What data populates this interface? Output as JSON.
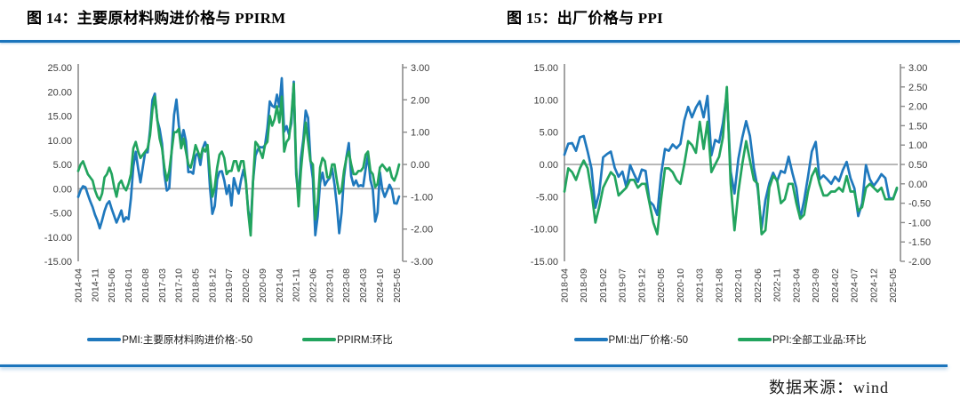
{
  "header": {
    "left_title": "图 14：主要原材料购进价格与 PPIRM",
    "right_title": "图 15：出厂价格与 PPI"
  },
  "page": {
    "source_label": "数据来源：wind"
  },
  "colors": {
    "blue": "#1F78BD",
    "green": "#22A45E",
    "rule_blue": "#1C75BC",
    "axis_gray": "#8C8C8C",
    "zero_gray": "#A0A0A0",
    "text": "#3D3D3D"
  },
  "chart_data": [
    {
      "type": "line",
      "title": "图 14：主要原材料购进价格与 PPIRM",
      "freq": "monthly",
      "start_month": "2014-04",
      "end_month": "2025-06",
      "x_tick_step_months": 7,
      "x_tick_labels": [
        "2014-04",
        "2014-11",
        "2015-06",
        "2016-01",
        "2016-08",
        "2017-03",
        "2017-10",
        "2018-05",
        "2018-12",
        "2019-07",
        "2020-02",
        "2020-09",
        "2021-04",
        "2021-11",
        "2022-06",
        "2023-01",
        "2023-08",
        "2024-03",
        "2024-10",
        "2025-05"
      ],
      "left_axis": {
        "min": -15,
        "max": 25,
        "tick_labels": [
          "25.00",
          "20.00",
          "15.00",
          "10.00",
          "5.00",
          "0.00",
          "-5.00",
          "-10.00",
          "-15.00"
        ]
      },
      "right_axis": {
        "min": -3,
        "max": 3,
        "tick_labels": [
          "3.00",
          "2.00",
          "1.00",
          "0.00",
          "-1.00",
          "-2.00",
          "-3.00"
        ]
      },
      "grid": false,
      "legend_position": "bottom",
      "series": [
        {
          "name": "PMI:主要原材料购进价格:-50",
          "axis": "left",
          "color_key": "blue",
          "values": [
            -1.7,
            -0.3,
            0.5,
            0.3,
            -1.2,
            -2.6,
            -3.8,
            -5.4,
            -6.6,
            -8.2,
            -6.5,
            -4.6,
            -3.2,
            -2.6,
            -4.2,
            -5.6,
            -7.0,
            -5.8,
            -4.5,
            -6.8,
            -5.9,
            -6.3,
            -2.0,
            4.6,
            7.6,
            4.2,
            1.3,
            4.5,
            7.6,
            7.5,
            12.1,
            18.3,
            19.6,
            14.2,
            12.3,
            9.3,
            2.9,
            -0.4,
            0.1,
            7.8,
            15.2,
            18.4,
            13.2,
            9.5,
            12.1,
            9.8,
            3.4,
            3.5,
            3.1,
            6.7,
            7.4,
            4.9,
            8.3,
            9.6,
            8.1,
            0.3,
            -5.2,
            -3.6,
            1.9,
            3.5,
            3.6,
            1.7,
            -1.1,
            0.7,
            -3.5,
            2.2,
            0.4,
            -1.0,
            1.8,
            3.9,
            1.4,
            -4.5,
            -7.5,
            1.6,
            6.8,
            8.1,
            8.6,
            8.5,
            8.9,
            12.5,
            18.0,
            17.1,
            16.8,
            19.4,
            16.9,
            22.8,
            11.8,
            12.9,
            11.2,
            13.5,
            22.1,
            2.9,
            -1.9,
            6.3,
            10.1,
            16.1,
            14.6,
            5.9,
            2.0,
            -9.6,
            -5.7,
            1.2,
            3.3,
            0.7,
            1.6,
            2.2,
            4.2,
            0.9,
            -3.5,
            -9.2,
            -4.9,
            2.4,
            6.5,
            9.4,
            2.6,
            0.7,
            1.7,
            0.5,
            0.7,
            0.5,
            4.0,
            6.9,
            1.8,
            -0.1,
            -6.8,
            -4.9,
            3.4,
            -0.2,
            -1.7,
            -0.5,
            0.8,
            -0.2,
            -3.0,
            -3.1,
            -1.6
          ]
        },
        {
          "name": "PPIRM:环比",
          "axis": "right",
          "color_key": "green",
          "values": [
            -0.2,
            0.0,
            0.1,
            -0.1,
            -0.3,
            -0.4,
            -0.5,
            -0.8,
            -1.0,
            -1.1,
            -0.9,
            -0.4,
            -0.3,
            -0.1,
            -0.3,
            -0.7,
            -1.0,
            -0.6,
            -0.5,
            -0.7,
            -0.8,
            -0.6,
            -0.3,
            0.5,
            0.7,
            0.4,
            0.2,
            0.3,
            0.4,
            0.5,
            0.9,
            1.7,
            2.1,
            1.4,
            0.8,
            0.5,
            -0.1,
            -0.5,
            -0.2,
            0.4,
            1.0,
            1.0,
            1.1,
            0.5,
            0.8,
            0.4,
            0.0,
            -0.1,
            0.2,
            0.6,
            0.4,
            0.2,
            0.5,
            0.4,
            0.6,
            -0.3,
            -1.0,
            -0.7,
            -0.1,
            0.3,
            0.4,
            0.2,
            -0.3,
            -0.2,
            -0.2,
            0.1,
            0.1,
            -0.2,
            0.1,
            0.1,
            -0.5,
            -1.5,
            -2.2,
            -0.5,
            0.7,
            0.6,
            0.4,
            0.2,
            0.6,
            0.7,
            1.5,
            1.2,
            1.4,
            1.8,
            1.3,
            2.1,
            0.4,
            0.7,
            0.8,
            1.5,
            2.5,
            -0.1,
            -1.3,
            -0.2,
            0.6,
            1.3,
            0.7,
            0.1,
            0.0,
            -1.7,
            -1.2,
            -0.1,
            0.2,
            0.1,
            -0.4,
            -0.4,
            0.0,
            0.0,
            -0.5,
            -0.9,
            -0.8,
            -0.2,
            0.2,
            0.4,
            0.0,
            -0.3,
            -0.3,
            -0.2,
            -0.2,
            -0.1,
            0.3,
            0.4,
            -0.2,
            -0.3,
            -0.7,
            -0.6,
            -0.1,
            0.0,
            -0.1,
            -0.2,
            -0.1,
            -0.4,
            -0.5,
            -0.3,
            0.0
          ]
        }
      ]
    },
    {
      "type": "line",
      "title": "图 15：出厂价格与 PPI",
      "freq": "monthly",
      "start_month": "2018-04",
      "end_month": "2025-06",
      "x_tick_step_months": 5,
      "x_tick_labels": [
        "2018-04",
        "2018-09",
        "2019-02",
        "2019-07",
        "2019-12",
        "2020-05",
        "2020-10",
        "2021-03",
        "2021-08",
        "2022-01",
        "2022-06",
        "2022-11",
        "2023-04",
        "2023-09",
        "2024-02",
        "2024-07",
        "2024-12",
        "2025-05"
      ],
      "left_axis": {
        "min": -15,
        "max": 15,
        "tick_labels": [
          "15.00",
          "10.00",
          "5.00",
          "0.00",
          "-5.00",
          "-10.00",
          "-15.00"
        ]
      },
      "right_axis": {
        "min": -2,
        "max": 3,
        "tick_labels": [
          "3.00",
          "2.50",
          "2.00",
          "1.50",
          "1.00",
          "0.50",
          "0.00",
          "-0.50",
          "-1.00",
          "-1.50",
          "-2.00"
        ]
      },
      "grid": false,
      "legend_position": "bottom",
      "series": [
        {
          "name": "PMI:出厂价格:-50",
          "axis": "left",
          "color_key": "blue",
          "values": [
            1.5,
            3.2,
            3.3,
            2.1,
            4.2,
            4.4,
            2.0,
            -0.6,
            -6.7,
            -4.4,
            1.1,
            1.6,
            2.0,
            -0.5,
            -1.9,
            -1.1,
            -3.5,
            -0.1,
            -1.5,
            -2.7,
            -0.8,
            -1.0,
            -5.7,
            -6.3,
            -7.8,
            -1.6,
            2.4,
            2.1,
            3.1,
            2.5,
            3.2,
            6.8,
            8.9,
            7.3,
            8.8,
            9.8,
            7.3,
            10.6,
            1.4,
            3.8,
            3.4,
            6.4,
            11.1,
            -1.1,
            -4.5,
            0.9,
            4.1,
            6.7,
            4.4,
            -0.5,
            -3.7,
            -9.9,
            -5.5,
            -2.9,
            -1.3,
            -2.6,
            -1.0,
            -1.3,
            1.2,
            -1.4,
            -3.6,
            -8.4,
            -5.6,
            -1.9,
            2.0,
            3.5,
            -2.3,
            -1.7,
            -2.3,
            -3.0,
            -1.9,
            -2.6,
            -0.9,
            0.4,
            -2.1,
            -3.7,
            -8.0,
            -6.0,
            -0.1,
            -2.3,
            -3.3,
            -2.5,
            -1.5,
            -2.1,
            -5.2,
            -5.3,
            -3.8
          ]
        },
        {
          "name": "PPI:全部工业品:环比",
          "axis": "right",
          "color_key": "green",
          "values": [
            -0.2,
            0.4,
            0.3,
            0.1,
            0.4,
            0.6,
            0.4,
            -0.2,
            -1.0,
            -0.6,
            -0.1,
            0.1,
            0.3,
            0.2,
            -0.3,
            -0.2,
            -0.1,
            0.1,
            0.1,
            -0.1,
            0.0,
            0.0,
            -0.5,
            -1.0,
            -1.3,
            -0.4,
            0.4,
            0.4,
            0.3,
            0.1,
            0.0,
            0.5,
            1.1,
            1.0,
            0.8,
            1.6,
            0.9,
            1.6,
            0.3,
            0.5,
            0.7,
            1.2,
            2.5,
            0.0,
            -1.2,
            -0.2,
            0.5,
            1.1,
            0.6,
            0.1,
            0.0,
            -1.3,
            -1.2,
            -0.1,
            0.2,
            0.1,
            -0.5,
            -0.4,
            0.0,
            0.0,
            -0.5,
            -0.9,
            -0.8,
            -0.2,
            0.2,
            0.4,
            0.0,
            -0.3,
            -0.3,
            -0.2,
            -0.2,
            -0.1,
            -0.2,
            0.2,
            -0.2,
            -0.2,
            -0.7,
            -0.6,
            -0.1,
            0.0,
            -0.1,
            -0.2,
            -0.1,
            -0.4,
            -0.4,
            -0.4,
            -0.1
          ]
        }
      ]
    }
  ]
}
